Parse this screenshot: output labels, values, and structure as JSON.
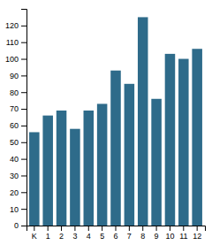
{
  "chart_data": {
    "type": "bar",
    "categories": [
      "K",
      "1",
      "2",
      "3",
      "4",
      "5",
      "6",
      "7",
      "8",
      "9",
      "10",
      "11",
      "12"
    ],
    "values": [
      56,
      66,
      69,
      58,
      69,
      73,
      93,
      85,
      125,
      76,
      103,
      100,
      106
    ],
    "color": "#2e6b8a",
    "ylim": [
      0,
      130
    ],
    "yticks": [
      0,
      10,
      20,
      30,
      40,
      50,
      60,
      70,
      80,
      90,
      100,
      110,
      120
    ],
    "grid": false
  }
}
